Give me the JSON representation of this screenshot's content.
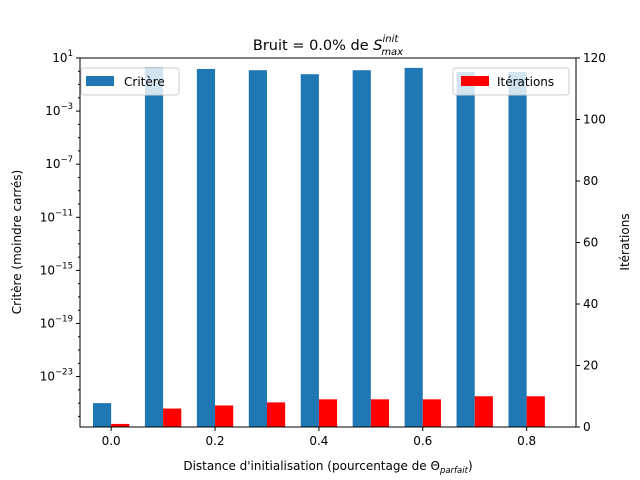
{
  "chart_data": {
    "type": "bar",
    "title": {
      "base": "Bruit = 0.0% de ",
      "sym": "S",
      "sup": "init",
      "sub": "max"
    },
    "xlabel": {
      "base": "Distance d'initialisation (pourcentage de Θ",
      "sub": "parfait",
      "tail": ")"
    },
    "ylabel_left": "Critère (moindre carrés)",
    "ylabel_right": "Itérations",
    "x": [
      0.0,
      0.1,
      0.2,
      0.3,
      0.4,
      0.5,
      0.6,
      0.7,
      0.8
    ],
    "x_ticks": [
      "0.0",
      "0.2",
      "0.4",
      "0.6",
      "0.8"
    ],
    "xlim": [
      -0.06,
      0.895
    ],
    "left_axis": {
      "scale": "log",
      "ylim_log10": [
        -26.8,
        1
      ],
      "ticks": [
        {
          "base": "10",
          "exp": "1"
        },
        {
          "base": "10",
          "exp": "−3"
        },
        {
          "base": "10",
          "exp": "−7"
        },
        {
          "base": "10",
          "exp": "−11"
        },
        {
          "base": "10",
          "exp": "−15"
        },
        {
          "base": "10",
          "exp": "−19"
        },
        {
          "base": "10",
          "exp": "−23"
        }
      ],
      "tick_log10": [
        1,
        -3,
        -7,
        -11,
        -15,
        -19,
        -23
      ]
    },
    "right_axis": {
      "scale": "linear",
      "ylim": [
        0,
        120
      ],
      "ticks": [
        "0",
        "20",
        "40",
        "60",
        "80",
        "100",
        "120"
      ],
      "tick_values": [
        0,
        20,
        40,
        60,
        80,
        100,
        120
      ]
    },
    "series": [
      {
        "name": "Critère",
        "axis": "left",
        "color": "#1f77b4",
        "values": [
          1e-25,
          2.0,
          1.5,
          1.2,
          0.6,
          1.2,
          1.8,
          0.9,
          0.9
        ]
      },
      {
        "name": "Itérations",
        "axis": "right",
        "color": "#ff0000",
        "values": [
          1,
          6,
          7,
          8,
          9,
          9,
          9,
          10,
          10
        ]
      }
    ],
    "legend": [
      {
        "name": "Critère",
        "placement": "upper-left"
      },
      {
        "name": "Itérations",
        "placement": "upper-right"
      }
    ],
    "grid": false
  }
}
